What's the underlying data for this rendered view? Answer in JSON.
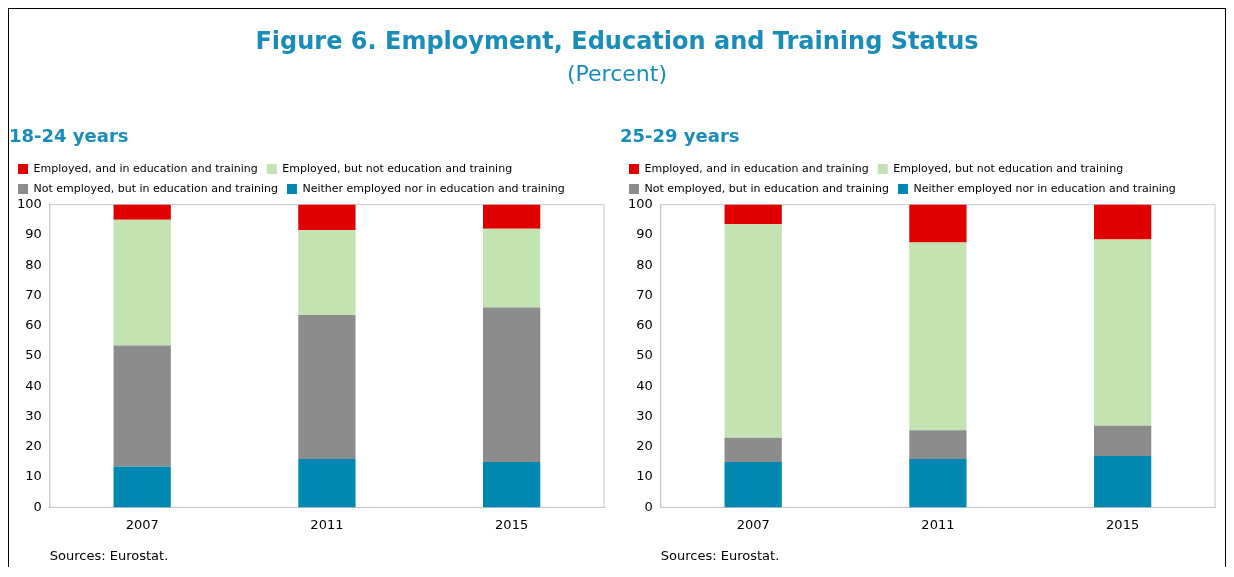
{
  "chart_data": [
    {
      "type": "other",
      "title": "Figure 6. Employment, Education and Training Status",
      "subtitle": "(Percent)"
    },
    {
      "type": "bar",
      "title": "18-24 years",
      "categories": [
        "2007",
        "2011",
        "2015"
      ],
      "stacked": true,
      "legend": "top left",
      "grid": false,
      "ylim": [
        0,
        100
      ],
      "yticks": [
        0,
        10,
        20,
        30,
        40,
        50,
        60,
        70,
        80,
        90,
        100
      ],
      "annotations": [
        "Sources: Eurostat."
      ],
      "series": [
        {
          "name": "Neither employed nor in education and training",
          "color": "#0088b0",
          "values": [
            13.5,
            16,
            15
          ]
        },
        {
          "name": "Not employed, but in education and training",
          "color": "#8c8c8c",
          "values": [
            40,
            47.5,
            51
          ]
        },
        {
          "name": "Employed, but not education and training",
          "color": "#c4e3b2",
          "values": [
            41.5,
            28,
            26
          ]
        },
        {
          "name": "Employed, and in education and training",
          "color": "#e00000",
          "values": [
            5,
            8.5,
            8
          ]
        }
      ]
    },
    {
      "type": "bar",
      "title": "25-29 years",
      "categories": [
        "2007",
        "2011",
        "2015"
      ],
      "stacked": true,
      "legend": "top left",
      "grid": false,
      "ylim": [
        0,
        100
      ],
      "yticks": [
        0,
        10,
        20,
        30,
        40,
        50,
        60,
        70,
        80,
        90,
        100
      ],
      "annotations": [
        "Sources: Eurostat."
      ],
      "series": [
        {
          "name": "Neither employed nor in education and training",
          "color": "#0088b0",
          "values": [
            15,
            16,
            17
          ]
        },
        {
          "name": "Not employed, but in education and training",
          "color": "#8c8c8c",
          "values": [
            8,
            9.5,
            10
          ]
        },
        {
          "name": "Employed, but not education and training",
          "color": "#c4e3b2",
          "values": [
            70.5,
            62,
            61.5
          ]
        },
        {
          "name": "Employed, and in education and training",
          "color": "#e00000",
          "values": [
            6.5,
            12.5,
            11.5
          ]
        }
      ]
    }
  ]
}
